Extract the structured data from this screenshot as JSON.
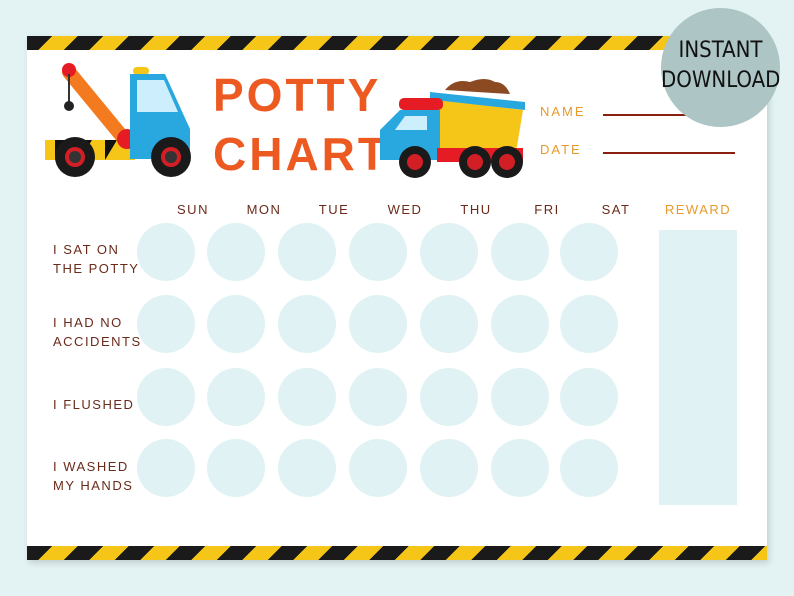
{
  "title": {
    "line1": "POTTY",
    "line2": "CHART"
  },
  "fields": {
    "name": "NAME",
    "date": "DATE"
  },
  "days": [
    "SUN",
    "MON",
    "TUE",
    "WED",
    "THU",
    "FRI",
    "SAT"
  ],
  "reward_label": "REWARD",
  "tasks": [
    {
      "l1": "I SAT ON",
      "l2": "THE POTTY"
    },
    {
      "l1": "I HAD NO",
      "l2": "ACCIDENTS"
    },
    {
      "l1": "I FLUSHED",
      "l2": ""
    },
    {
      "l1": "I WASHED",
      "l2": "MY HANDS"
    }
  ],
  "badge": {
    "line1": "INSTANT",
    "line2": "DOWNLOAD"
  },
  "colors": {
    "title": "#ec5a22",
    "label": "#e79a2c",
    "text": "#6b2a1a",
    "circle": "#e0f2f3"
  }
}
